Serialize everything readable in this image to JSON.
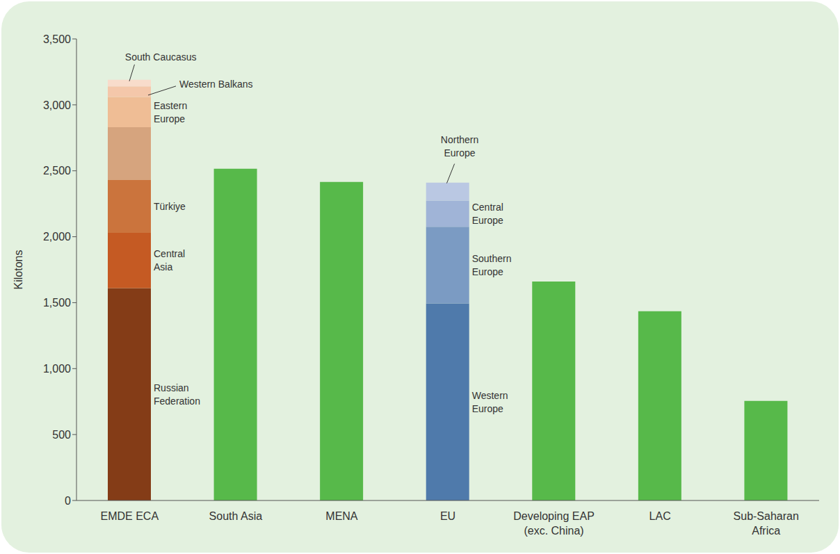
{
  "chart_data": {
    "type": "bar",
    "stacked": true,
    "y_label": "Kilotons",
    "categories": [
      "EMDE ECA",
      "South Asia",
      "MENA",
      "EU",
      "Developing EAP (exc. China)",
      "LAC",
      "Sub-Saharan Africa"
    ],
    "ylim": [
      0,
      3500
    ],
    "yticks": [
      0,
      500,
      {
        "value": 1000,
        "label": "1,000"
      },
      {
        "value": 1500,
        "label": "1,500"
      },
      {
        "value": 2000,
        "label": "2,000"
      },
      {
        "value": 2500,
        "label": "2,500"
      },
      {
        "value": 3000,
        "label": "3,000"
      },
      {
        "value": 3500,
        "label": "3,500"
      }
    ],
    "grid": false,
    "series": [
      {
        "name": "Russian Federation",
        "color": "#843c17",
        "values": [
          1610,
          null,
          null,
          null,
          null,
          null,
          null
        ]
      },
      {
        "name": "Central Asia",
        "color": "#c55a23",
        "values": [
          420,
          null,
          null,
          null,
          null,
          null,
          null
        ]
      },
      {
        "name": "Türkiye",
        "color": "#cb743d",
        "values": [
          400,
          null,
          null,
          null,
          null,
          null,
          null
        ]
      },
      {
        "color": "#d6a47e",
        "values": [
          400,
          null,
          null,
          null,
          null,
          null,
          null
        ]
      },
      {
        "name": "Eastern Europe",
        "color": "#efbd95",
        "values": [
          230,
          null,
          null,
          null,
          null,
          null,
          null
        ]
      },
      {
        "name": "Western Balkans",
        "color": "#f4c7aa",
        "values": [
          80,
          null,
          null,
          null,
          null,
          null,
          null
        ]
      },
      {
        "name": "South Caucasus",
        "color": "#f8dccb",
        "values": [
          50,
          null,
          null,
          null,
          null,
          null,
          null
        ]
      },
      {
        "name": "Western Europe",
        "color": "#4f7aab",
        "values": [
          null,
          null,
          null,
          1495,
          null,
          null,
          null
        ]
      },
      {
        "name": "Southern Europe",
        "color": "#7b9bc3",
        "values": [
          null,
          null,
          null,
          580,
          null,
          null,
          null
        ]
      },
      {
        "name": "Central Europe",
        "color": "#a0b4d7",
        "values": [
          null,
          null,
          null,
          200,
          null,
          null,
          null
        ]
      },
      {
        "name": "Northern Europe",
        "color": "#bac8e3",
        "values": [
          null,
          null,
          null,
          135,
          null,
          null,
          null
        ]
      },
      {
        "color": "#57b94a",
        "values": [
          null,
          2515,
          2415,
          null,
          1660,
          1435,
          755
        ]
      }
    ]
  }
}
